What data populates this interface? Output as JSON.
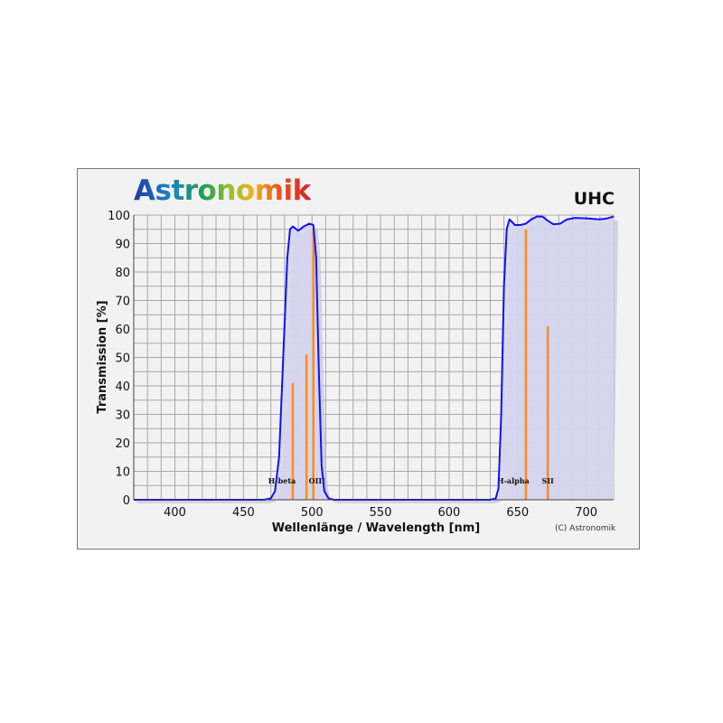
{
  "logo": "Astronomik",
  "copyright": "(C) Astronomik",
  "chart_data": {
    "type": "line",
    "title": "UHC",
    "xlabel": "Wellenlänge / Wavelength [nm]",
    "ylabel": "Transmission [%]",
    "xlim": [
      370,
      720
    ],
    "ylim": [
      0,
      100
    ],
    "xticks": [
      400,
      450,
      500,
      550,
      600,
      650,
      700
    ],
    "yticks": [
      0,
      10,
      20,
      30,
      40,
      50,
      60,
      70,
      80,
      90,
      100
    ],
    "grid": true,
    "colors": {
      "curve": "#1010ff",
      "fill": "#d6d6ee",
      "lines": "#ff8c1a"
    },
    "series": [
      {
        "x": [
          370,
          465,
          470,
          473,
          476,
          479,
          482,
          484,
          486,
          490,
          494,
          498,
          501,
          503,
          505,
          507,
          509,
          512,
          516,
          630,
          634,
          636,
          638,
          640,
          642,
          644,
          646,
          648,
          652,
          656,
          660,
          664,
          668,
          672,
          676,
          681,
          686,
          692,
          701,
          710,
          715,
          720
        ],
        "y": [
          0,
          0,
          0.5,
          3,
          15,
          50,
          85,
          95,
          96,
          94.5,
          96,
          97,
          96.5,
          85,
          45,
          12,
          3,
          0.5,
          0,
          0,
          0.5,
          4,
          30,
          75,
          95,
          98.5,
          97.5,
          96.5,
          96.5,
          97,
          98.5,
          99.5,
          99.5,
          98,
          96.8,
          97,
          98.5,
          99,
          98.8,
          98.5,
          98.8,
          99.5
        ]
      }
    ],
    "emission_lines": [
      {
        "label": "H-beta",
        "x": 486,
        "y": 41
      },
      {
        "label": "",
        "x": 496,
        "y": 51
      },
      {
        "label": "OIII",
        "x": 501,
        "y": 95
      },
      {
        "label": "H-alpha",
        "x": 656,
        "y": 95
      },
      {
        "label": "SII",
        "x": 672,
        "y": 61
      }
    ]
  }
}
